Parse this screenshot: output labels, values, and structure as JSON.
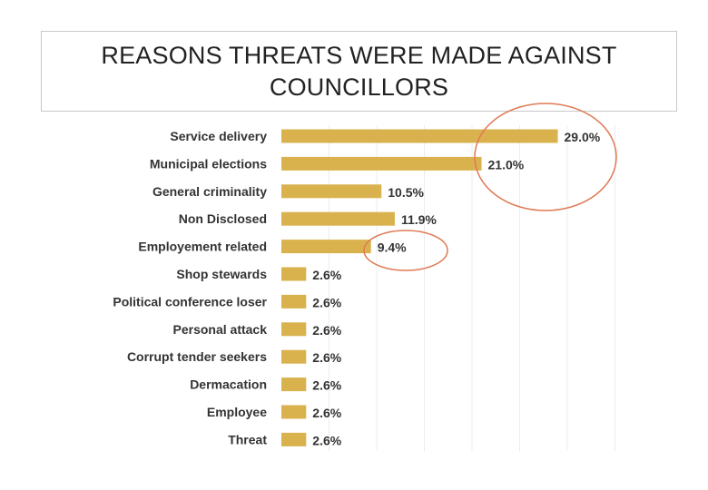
{
  "chart_data": {
    "type": "bar",
    "orientation": "horizontal",
    "title": "REASONS THREATS WERE MADE AGAINST COUNCILLORS",
    "categories": [
      "Service delivery",
      "Municipal elections",
      "General criminality",
      "Non Disclosed",
      "Employement related",
      "Shop stewards",
      "Political conference loser",
      "Personal attack",
      "Corrupt tender seekers",
      "Dermacation",
      "Employee",
      "Threat"
    ],
    "values": [
      29.0,
      21.0,
      10.5,
      11.9,
      9.4,
      2.6,
      2.6,
      2.6,
      2.6,
      2.6,
      2.6,
      2.6
    ],
    "value_labels": [
      "29.0%",
      "21.0%",
      "10.5%",
      "11.9%",
      "9.4%",
      "2.6%",
      "2.6%",
      "2.6%",
      "2.6%",
      "2.6%",
      "2.6%",
      "2.6%"
    ],
    "xlim": [
      0,
      35
    ],
    "grid": true,
    "bar_color": "#d9b24e",
    "highlight_color": "#e07a55"
  }
}
